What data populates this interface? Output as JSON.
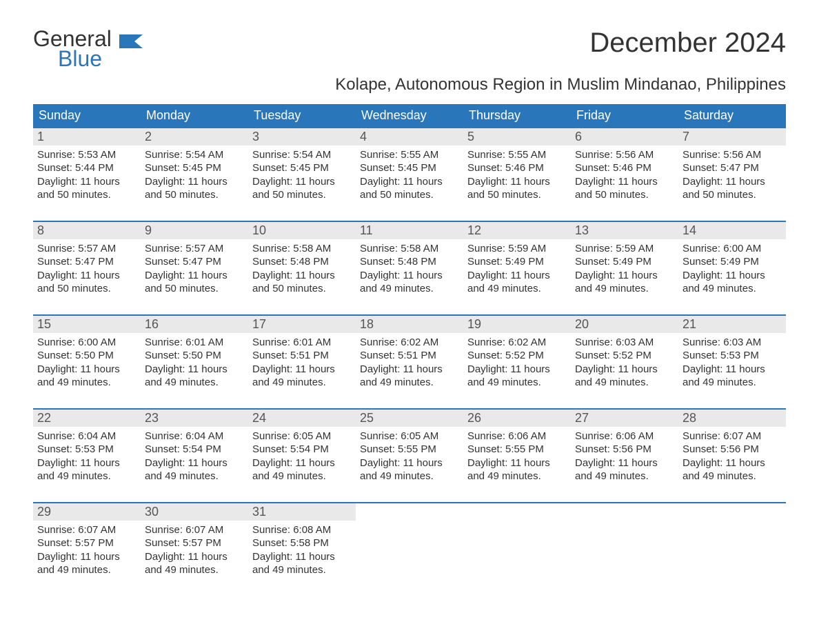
{
  "logo": {
    "text1": "General",
    "text2": "Blue"
  },
  "title": "December 2024",
  "subtitle": "Kolape, Autonomous Region in Muslim Mindanao, Philippines",
  "colors": {
    "header_bg": "#2976bb",
    "header_fg": "#ffffff",
    "daynum_bg": "#e9e9e9",
    "row_border": "#2976bb",
    "text": "#333333",
    "logo_blue": "#2976bb"
  },
  "fonts": {
    "title_size": 40,
    "subtitle_size": 24,
    "header_size": 18,
    "body_size": 15
  },
  "weekdays": [
    "Sunday",
    "Monday",
    "Tuesday",
    "Wednesday",
    "Thursday",
    "Friday",
    "Saturday"
  ],
  "labels": {
    "sunrise": "Sunrise: ",
    "sunset": "Sunset: ",
    "daylight_prefix": "Daylight: "
  },
  "weeks": [
    [
      {
        "n": "1",
        "sr": "5:53 AM",
        "ss": "5:44 PM",
        "dl": "11 hours and 50 minutes."
      },
      {
        "n": "2",
        "sr": "5:54 AM",
        "ss": "5:45 PM",
        "dl": "11 hours and 50 minutes."
      },
      {
        "n": "3",
        "sr": "5:54 AM",
        "ss": "5:45 PM",
        "dl": "11 hours and 50 minutes."
      },
      {
        "n": "4",
        "sr": "5:55 AM",
        "ss": "5:45 PM",
        "dl": "11 hours and 50 minutes."
      },
      {
        "n": "5",
        "sr": "5:55 AM",
        "ss": "5:46 PM",
        "dl": "11 hours and 50 minutes."
      },
      {
        "n": "6",
        "sr": "5:56 AM",
        "ss": "5:46 PM",
        "dl": "11 hours and 50 minutes."
      },
      {
        "n": "7",
        "sr": "5:56 AM",
        "ss": "5:47 PM",
        "dl": "11 hours and 50 minutes."
      }
    ],
    [
      {
        "n": "8",
        "sr": "5:57 AM",
        "ss": "5:47 PM",
        "dl": "11 hours and 50 minutes."
      },
      {
        "n": "9",
        "sr": "5:57 AM",
        "ss": "5:47 PM",
        "dl": "11 hours and 50 minutes."
      },
      {
        "n": "10",
        "sr": "5:58 AM",
        "ss": "5:48 PM",
        "dl": "11 hours and 50 minutes."
      },
      {
        "n": "11",
        "sr": "5:58 AM",
        "ss": "5:48 PM",
        "dl": "11 hours and 49 minutes."
      },
      {
        "n": "12",
        "sr": "5:59 AM",
        "ss": "5:49 PM",
        "dl": "11 hours and 49 minutes."
      },
      {
        "n": "13",
        "sr": "5:59 AM",
        "ss": "5:49 PM",
        "dl": "11 hours and 49 minutes."
      },
      {
        "n": "14",
        "sr": "6:00 AM",
        "ss": "5:49 PM",
        "dl": "11 hours and 49 minutes."
      }
    ],
    [
      {
        "n": "15",
        "sr": "6:00 AM",
        "ss": "5:50 PM",
        "dl": "11 hours and 49 minutes."
      },
      {
        "n": "16",
        "sr": "6:01 AM",
        "ss": "5:50 PM",
        "dl": "11 hours and 49 minutes."
      },
      {
        "n": "17",
        "sr": "6:01 AM",
        "ss": "5:51 PM",
        "dl": "11 hours and 49 minutes."
      },
      {
        "n": "18",
        "sr": "6:02 AM",
        "ss": "5:51 PM",
        "dl": "11 hours and 49 minutes."
      },
      {
        "n": "19",
        "sr": "6:02 AM",
        "ss": "5:52 PM",
        "dl": "11 hours and 49 minutes."
      },
      {
        "n": "20",
        "sr": "6:03 AM",
        "ss": "5:52 PM",
        "dl": "11 hours and 49 minutes."
      },
      {
        "n": "21",
        "sr": "6:03 AM",
        "ss": "5:53 PM",
        "dl": "11 hours and 49 minutes."
      }
    ],
    [
      {
        "n": "22",
        "sr": "6:04 AM",
        "ss": "5:53 PM",
        "dl": "11 hours and 49 minutes."
      },
      {
        "n": "23",
        "sr": "6:04 AM",
        "ss": "5:54 PM",
        "dl": "11 hours and 49 minutes."
      },
      {
        "n": "24",
        "sr": "6:05 AM",
        "ss": "5:54 PM",
        "dl": "11 hours and 49 minutes."
      },
      {
        "n": "25",
        "sr": "6:05 AM",
        "ss": "5:55 PM",
        "dl": "11 hours and 49 minutes."
      },
      {
        "n": "26",
        "sr": "6:06 AM",
        "ss": "5:55 PM",
        "dl": "11 hours and 49 minutes."
      },
      {
        "n": "27",
        "sr": "6:06 AM",
        "ss": "5:56 PM",
        "dl": "11 hours and 49 minutes."
      },
      {
        "n": "28",
        "sr": "6:07 AM",
        "ss": "5:56 PM",
        "dl": "11 hours and 49 minutes."
      }
    ],
    [
      {
        "n": "29",
        "sr": "6:07 AM",
        "ss": "5:57 PM",
        "dl": "11 hours and 49 minutes."
      },
      {
        "n": "30",
        "sr": "6:07 AM",
        "ss": "5:57 PM",
        "dl": "11 hours and 49 minutes."
      },
      {
        "n": "31",
        "sr": "6:08 AM",
        "ss": "5:58 PM",
        "dl": "11 hours and 49 minutes."
      },
      null,
      null,
      null,
      null
    ]
  ]
}
